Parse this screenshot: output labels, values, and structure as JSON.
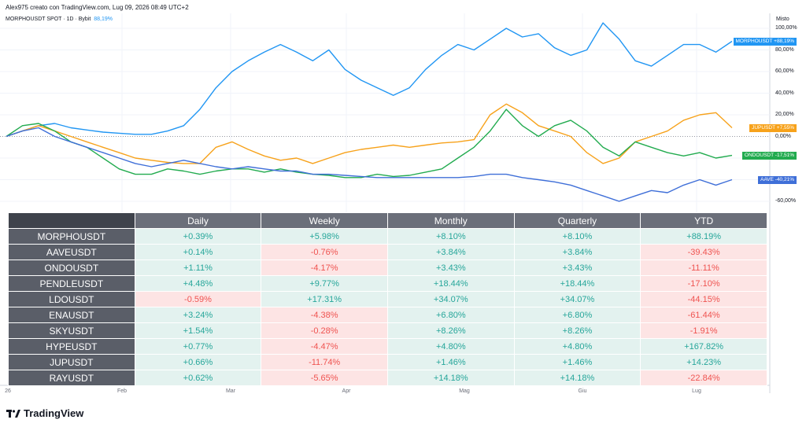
{
  "header": {
    "attribution": "Alex975 creato con TradingView.com, Lug 09, 2026 08:49 UTC+2"
  },
  "symbol": {
    "name": "MORPHOUSDT SPOT · 1D · Bybit",
    "change": "88,19%"
  },
  "axis": {
    "title": "Misto"
  },
  "brand": {
    "name": "TradingView"
  },
  "colors": {
    "morpho": "#2196f3",
    "jup": "#f7a21b",
    "ondo": "#22ab4f",
    "aave": "#3f6fd8",
    "positive": "#26a69a",
    "negative": "#ef5350"
  },
  "chart_data": {
    "type": "line",
    "y_unit": "%",
    "y_ticks": [
      "100,00%",
      "80,00%",
      "60,00%",
      "40,00%",
      "20,00%",
      "0,00%",
      "-60,00%"
    ],
    "x_ticks": [
      "26",
      "Feb",
      "Mar",
      "Apr",
      "Mag",
      "Giu",
      "Lug"
    ],
    "ylim": [
      -65,
      105
    ],
    "series": [
      {
        "name": "MORPHOUSDT",
        "last_label": "+88,19%",
        "color": "#2196f3",
        "values": [
          0,
          5,
          10,
          12,
          8,
          6,
          4,
          3,
          2,
          2,
          5,
          10,
          25,
          45,
          60,
          70,
          78,
          85,
          78,
          70,
          80,
          62,
          52,
          45,
          38,
          45,
          62,
          75,
          85,
          80,
          90,
          100,
          92,
          95,
          82,
          75,
          80,
          105,
          90,
          70,
          65,
          75,
          85,
          85,
          78,
          88
        ]
      },
      {
        "name": "JUPUSDT",
        "last_label": "+7,55%",
        "color": "#f7a21b",
        "values": [
          0,
          5,
          10,
          5,
          0,
          -5,
          -10,
          -15,
          -20,
          -22,
          -24,
          -25,
          -25,
          -10,
          -5,
          -12,
          -18,
          -22,
          -20,
          -25,
          -20,
          -15,
          -12,
          -10,
          -8,
          -10,
          -8,
          -6,
          -5,
          -3,
          20,
          30,
          22,
          10,
          5,
          0,
          -15,
          -25,
          -20,
          -5,
          0,
          5,
          15,
          20,
          22,
          8
        ]
      },
      {
        "name": "ONDOUSDT",
        "last_label": "-17,51%",
        "color": "#22ab4f",
        "values": [
          0,
          10,
          12,
          5,
          -5,
          -10,
          -20,
          -30,
          -35,
          -35,
          -30,
          -32,
          -35,
          -32,
          -30,
          -30,
          -33,
          -30,
          -33,
          -35,
          -36,
          -38,
          -38,
          -35,
          -37,
          -36,
          -33,
          -30,
          -20,
          -10,
          5,
          25,
          10,
          0,
          10,
          15,
          5,
          -10,
          -18,
          -5,
          -10,
          -15,
          -18,
          -15,
          -20,
          -17.5
        ]
      },
      {
        "name": "AAVE",
        "last_label": "-40,21%",
        "color": "#3f6fd8",
        "values": [
          0,
          5,
          8,
          0,
          -5,
          -10,
          -15,
          -20,
          -25,
          -28,
          -25,
          -22,
          -25,
          -28,
          -30,
          -28,
          -30,
          -32,
          -32,
          -35,
          -35,
          -36,
          -37,
          -38,
          -38,
          -38,
          -38,
          -38,
          -38,
          -37,
          -35,
          -35,
          -38,
          -40,
          -42,
          -45,
          -50,
          -55,
          -60,
          -55,
          -50,
          -52,
          -45,
          -40,
          -45,
          -40
        ]
      }
    ]
  },
  "table": {
    "columns": [
      "Daily",
      "Weekly",
      "Monthly",
      "Quarterly",
      "YTD"
    ],
    "rows": [
      {
        "symbol": "MORPHOUSDT",
        "values": [
          "+0.39%",
          "+5.98%",
          "+8.10%",
          "+8.10%",
          "+88.19%"
        ]
      },
      {
        "symbol": "AAVEUSDT",
        "values": [
          "+0.14%",
          "-0.76%",
          "+3.84%",
          "+3.84%",
          "-39.43%"
        ]
      },
      {
        "symbol": "ONDOUSDT",
        "values": [
          "+1.11%",
          "-4.17%",
          "+3.43%",
          "+3.43%",
          "-11.11%"
        ]
      },
      {
        "symbol": "PENDLEUSDT",
        "values": [
          "+4.48%",
          "+9.77%",
          "+18.44%",
          "+18.44%",
          "-17.10%"
        ]
      },
      {
        "symbol": "LDOUSDT",
        "values": [
          "-0.59%",
          "+17.31%",
          "+34.07%",
          "+34.07%",
          "-44.15%"
        ]
      },
      {
        "symbol": "ENAUSDT",
        "values": [
          "+3.24%",
          "-4.38%",
          "+6.80%",
          "+6.80%",
          "-61.44%"
        ]
      },
      {
        "symbol": "SKYUSDT",
        "values": [
          "+1.54%",
          "-0.28%",
          "+8.26%",
          "+8.26%",
          "-1.91%"
        ]
      },
      {
        "symbol": "HYPEUSDT",
        "values": [
          "+0.77%",
          "-4.47%",
          "+4.80%",
          "+4.80%",
          "+167.82%"
        ]
      },
      {
        "symbol": "JUPUSDT",
        "values": [
          "+0.66%",
          "-11.74%",
          "+1.46%",
          "+1.46%",
          "+14.23%"
        ]
      },
      {
        "symbol": "RAYUSDT",
        "values": [
          "+0.62%",
          "-5.65%",
          "+14.18%",
          "+14.18%",
          "-22.84%"
        ]
      }
    ]
  }
}
